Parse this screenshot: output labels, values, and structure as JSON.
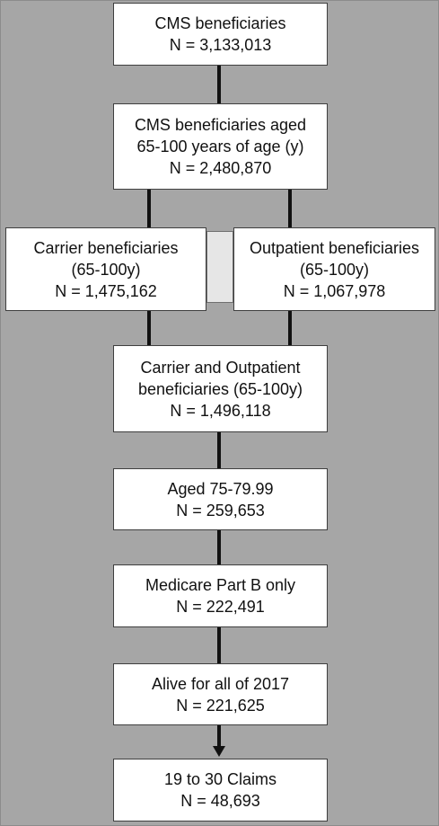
{
  "flowchart": {
    "box1": {
      "line1": "CMS beneficiaries",
      "line2": "N = 3,133,013"
    },
    "box2": {
      "line1": "CMS beneficiaries aged",
      "line2": "65-100 years of age (y)",
      "line3": "N = 2,480,870"
    },
    "box_carrier": {
      "line1": "Carrier beneficiaries",
      "line2": "(65-100y)",
      "line3": "N = 1,475,162"
    },
    "box_outpatient": {
      "line1": "Outpatient beneficiaries",
      "line2": "(65-100y)",
      "line3": "N = 1,067,978"
    },
    "box_combined": {
      "line1": "Carrier and Outpatient",
      "line2": "beneficiaries (65-100y)",
      "line3": "N = 1,496,118"
    },
    "box_aged": {
      "line1": "Aged 75-79.99",
      "line2": "N = 259,653"
    },
    "box_partb": {
      "line1": "Medicare Part B only",
      "line2": "N = 222,491"
    },
    "box_alive": {
      "line1": "Alive for all of 2017",
      "line2": "N = 221,625"
    },
    "box_claims": {
      "line1": "19 to 30 Claims",
      "line2": "N = 48,693"
    }
  },
  "colors": {
    "background": "#a6a6a6",
    "box_fill": "#ffffff",
    "line": "#111111",
    "connector_fill": "#e6e6e6"
  }
}
